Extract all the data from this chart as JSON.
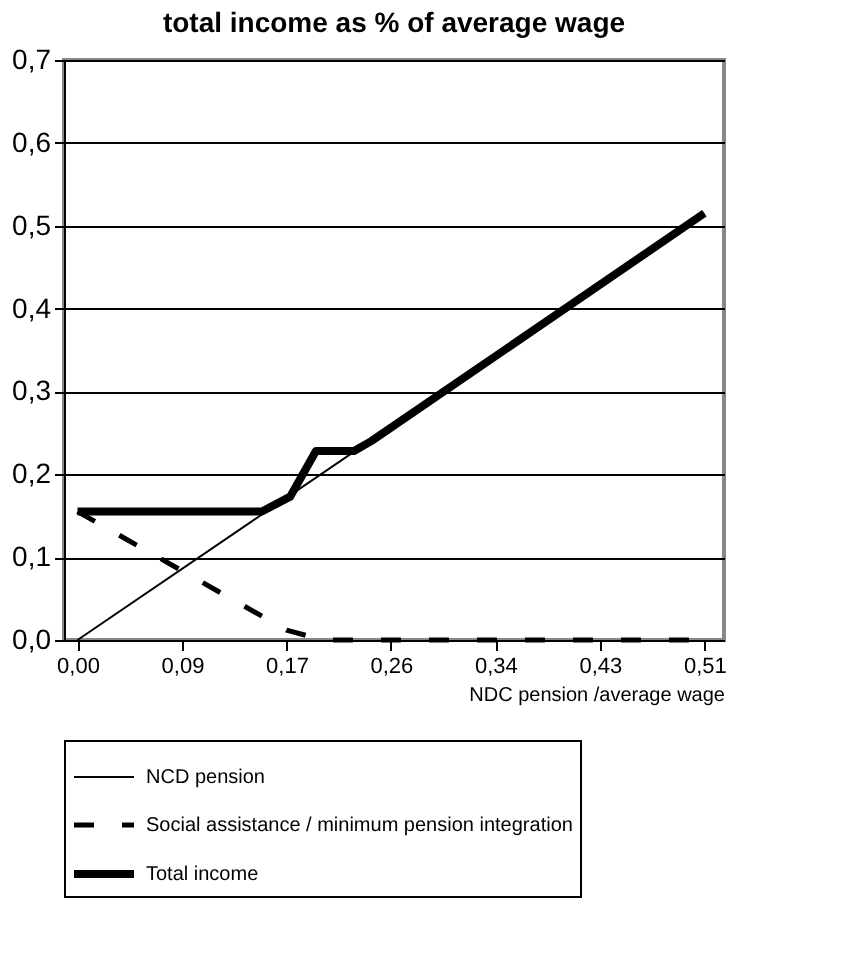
{
  "chart_data": {
    "type": "line",
    "title": "total income as % of average wage",
    "xlabel": "NDC pension /average wage",
    "xlim": [
      -0.011,
      0.526
    ],
    "xticks": [
      {
        "value": 0,
        "label": "0,00"
      },
      {
        "value": 0.085,
        "label": "0,09"
      },
      {
        "value": 0.17,
        "label": "0,17"
      },
      {
        "value": 0.255,
        "label": "0,26"
      },
      {
        "value": 0.34,
        "label": "0,34"
      },
      {
        "value": 0.425,
        "label": "0,43"
      },
      {
        "value": 0.51,
        "label": "0,51"
      }
    ],
    "ylim": [
      0,
      0.7
    ],
    "yticks": [
      {
        "value": 0,
        "label": "0,0"
      },
      {
        "value": 0.1,
        "label": "0,1"
      },
      {
        "value": 0.2,
        "label": "0,2"
      },
      {
        "value": 0.3,
        "label": "0,3"
      },
      {
        "value": 0.4,
        "label": "0,4"
      },
      {
        "value": 0.5,
        "label": "0,5"
      },
      {
        "value": 0.6,
        "label": "0,6"
      },
      {
        "value": 0.7,
        "label": "0,7"
      }
    ],
    "grid": "y",
    "legend": "bottom",
    "marker": "none",
    "series": [
      {
        "name": "NCD pension",
        "color": "#000000",
        "line_style": "solid",
        "x": [
          0,
          0.51
        ],
        "values": [
          0,
          0.515
        ]
      },
      {
        "name": "Social assistance / minimum pension integration",
        "color": "#000000",
        "line_style": "dashed",
        "x": [
          0,
          0.17,
          0.2,
          0.51
        ],
        "values": [
          0.155,
          0.012,
          0,
          0
        ]
      },
      {
        "name": "Total income",
        "color": "#000000",
        "line_style": "solid",
        "x": [
          0,
          0.15,
          0.173,
          0.194,
          0.225,
          0.239,
          0.51
        ],
        "values": [
          0.155,
          0.155,
          0.173,
          0.228,
          0.228,
          0.24,
          0.515
        ]
      }
    ]
  }
}
